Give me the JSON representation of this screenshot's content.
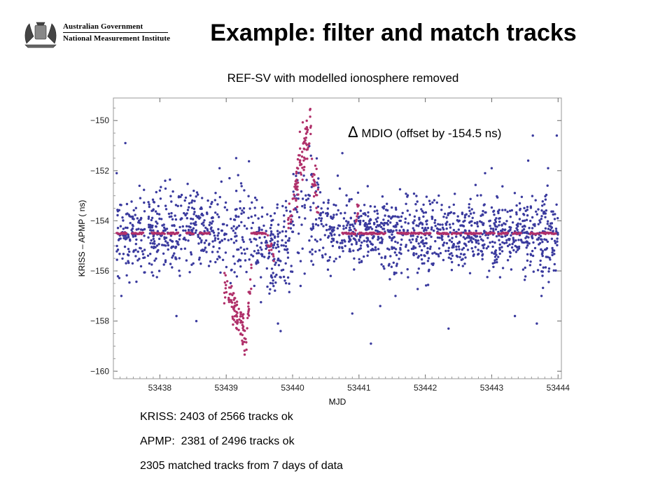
{
  "header": {
    "logo_line1": "Australian Government",
    "logo_line2": "National Measurement Institute",
    "title": "Example: filter and match tracks"
  },
  "notes": [
    "KRISS: 2403 of 2566 tracks ok",
    "APMP:  2381 of 2496 tracks ok",
    "2305 matched tracks from 7 days of data"
  ],
  "colors": {
    "points": "#3a3a9e",
    "filtered": "#b0306a",
    "frame": "#999999"
  },
  "chart_data": {
    "type": "scatter",
    "title": "REF-SV with modelled ionosphere removed",
    "xlabel": "MJD",
    "ylabel": "KRISS – APMP ( ns)",
    "xlim": [
      53437.3,
      53444.05
    ],
    "ylim": [
      -160.3,
      -149.1
    ],
    "x_ticks": [
      53438,
      53439,
      53440,
      53441,
      53442,
      53443,
      53444
    ],
    "x_tick_labels": [
      "53438",
      "53439",
      "53440",
      "53441",
      "53442",
      "53443",
      "53444"
    ],
    "y_ticks": [
      -150,
      -152,
      -154,
      -156,
      -158,
      -160
    ],
    "y_tick_labels": [
      "−150",
      "−152",
      "−154",
      "−156",
      "−158",
      "−160"
    ],
    "grid": false,
    "annotation": {
      "symbol": "Δ",
      "text": " MDIO (offset by -154.5 ns)"
    },
    "series": [
      {
        "role": "raw differences (blue)",
        "style": "scatter",
        "segments": [
          {
            "x": [
              53437.35,
              53437.78
            ],
            "center": -154.6,
            "spread": 1.1,
            "count": 120
          },
          {
            "x": [
              53437.8,
              53438.3
            ],
            "center": -154.4,
            "spread": 1.2,
            "count": 150
          },
          {
            "x": [
              53438.3,
              53438.95
            ],
            "center": -154.3,
            "spread": 1.1,
            "count": 170
          },
          {
            "x": [
              53438.95,
              53439.45
            ],
            "center": -154.4,
            "spread": 1.5,
            "count": 90
          },
          {
            "x": [
              53439.45,
              53440.0
            ],
            "center": -155.0,
            "spread": 1.3,
            "count": 150
          },
          {
            "x": [
              53440.0,
              53440.4
            ],
            "center": -153.5,
            "spread": 1.6,
            "count": 70
          },
          {
            "x": [
              53440.4,
              53440.75
            ],
            "center": -154.5,
            "spread": 1.1,
            "count": 80
          },
          {
            "x": [
              53440.75,
              53441.45
            ],
            "center": -154.4,
            "spread": 0.9,
            "count": 200
          },
          {
            "x": [
              53441.45,
              53442.1
            ],
            "center": -154.6,
            "spread": 1.2,
            "count": 190
          },
          {
            "x": [
              53442.1,
              53442.8
            ],
            "center": -154.6,
            "spread": 1.0,
            "count": 190
          },
          {
            "x": [
              53442.8,
              53443.45
            ],
            "center": -154.5,
            "spread": 1.0,
            "count": 190
          },
          {
            "x": [
              53443.45,
              53444.0
            ],
            "center": -154.6,
            "spread": 1.1,
            "count": 170
          }
        ],
        "outliers": [
          [
            53437.48,
            -150.9
          ],
          [
            53437.35,
            -152.1
          ],
          [
            53437.42,
            -157.0
          ],
          [
            53438.08,
            -152.4
          ],
          [
            53438.25,
            -157.8
          ],
          [
            53438.55,
            -158.0
          ],
          [
            53438.9,
            -151.9
          ],
          [
            53439.05,
            -152.3
          ],
          [
            53439.15,
            -151.5
          ],
          [
            53439.78,
            -158.1
          ],
          [
            53439.82,
            -158.4
          ],
          [
            53440.12,
            -156.6
          ],
          [
            53440.68,
            -152.2
          ],
          [
            53440.75,
            -151.3
          ],
          [
            53440.9,
            -157.7
          ],
          [
            53441.18,
            -158.9
          ],
          [
            53441.32,
            -157.4
          ],
          [
            53441.55,
            -157.0
          ],
          [
            53442.35,
            -158.3
          ],
          [
            53442.9,
            -152.1
          ],
          [
            53443.0,
            -151.9
          ],
          [
            53443.35,
            -157.8
          ],
          [
            53443.55,
            -151.6
          ],
          [
            53443.62,
            -150.6
          ],
          [
            53443.68,
            -158.1
          ],
          [
            53443.75,
            -157.0
          ],
          [
            53443.98,
            -150.6
          ],
          [
            53443.85,
            -151.9
          ]
        ]
      },
      {
        "role": "modelled MDIO Δ offset (magenta)",
        "style": "flat",
        "value": -154.5,
        "segments": [
          [
            53437.35,
            53437.5
          ],
          [
            53437.58,
            53437.76
          ],
          [
            53437.88,
            53438.08
          ],
          [
            53438.12,
            53438.28
          ],
          [
            53438.4,
            53438.52
          ],
          [
            53438.6,
            53438.75
          ],
          [
            53439.38,
            53439.6
          ],
          [
            53440.75,
            53440.95
          ],
          [
            53441.0,
            53441.4
          ],
          [
            53441.58,
            53441.75
          ],
          [
            53441.78,
            53441.95
          ],
          [
            53441.98,
            53442.08
          ],
          [
            53442.18,
            53442.35
          ],
          [
            53442.4,
            53442.55
          ],
          [
            53442.6,
            53442.85
          ],
          [
            53442.92,
            53443.05
          ],
          [
            53443.1,
            53443.25
          ],
          [
            53443.32,
            53443.45
          ],
          [
            53443.58,
            53443.72
          ],
          [
            53443.75,
            53443.97
          ]
        ]
      },
      {
        "role": "disturbed MDIO Δ (magenta)",
        "style": "band",
        "bands": [
          {
            "x": [
              53438.97,
              53439.15
            ],
            "from": -156.6,
            "to": -157.6,
            "spread": 0.45,
            "count": 45
          },
          {
            "x": [
              53439.15,
              53439.3
            ],
            "from": -157.6,
            "to": -158.7,
            "spread": 0.55,
            "count": 45
          },
          {
            "x": [
              53439.3,
              53439.38
            ],
            "from": -158.6,
            "to": -156.0,
            "spread": 0.5,
            "count": 22
          },
          {
            "x": [
              53439.62,
              53439.72
            ],
            "from": -154.7,
            "to": -155.4,
            "spread": 0.2,
            "count": 12
          },
          {
            "x": [
              53439.93,
              53440.05
            ],
            "from": -154.2,
            "to": -152.7,
            "spread": 0.35,
            "count": 18
          },
          {
            "x": [
              53440.05,
              53440.28
            ],
            "from": -152.5,
            "to": -150.0,
            "spread": 0.8,
            "count": 70
          },
          {
            "x": [
              53440.28,
              53440.4
            ],
            "from": -152.2,
            "to": -153.2,
            "spread": 0.6,
            "count": 22
          },
          {
            "x": [
              53440.94,
              53441.0
            ],
            "from": -154.4,
            "to": -153.2,
            "spread": 0.3,
            "count": 10
          }
        ]
      }
    ]
  }
}
